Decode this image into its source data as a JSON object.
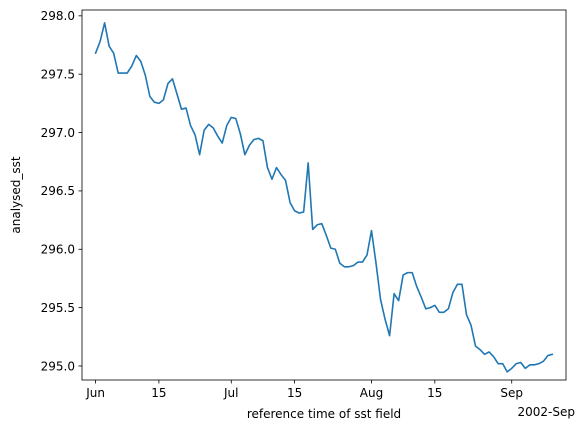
{
  "chart_data": {
    "type": "line",
    "xlabel": "reference time of sst field",
    "ylabel": "analysed_sst",
    "x_offset_label": "2002-Sep",
    "xlim": [
      "2002-05-29",
      "2002-09-13"
    ],
    "ylim": [
      294.88,
      298.05
    ],
    "grid": false,
    "x_ticks": [
      {
        "date": "2002-06-01",
        "label": "Jun"
      },
      {
        "date": "2002-06-15",
        "label": "15"
      },
      {
        "date": "2002-07-01",
        "label": "Jul"
      },
      {
        "date": "2002-07-15",
        "label": "15"
      },
      {
        "date": "2002-08-01",
        "label": "Aug"
      },
      {
        "date": "2002-08-15",
        "label": "15"
      },
      {
        "date": "2002-09-01",
        "label": "Sep"
      }
    ],
    "y_ticks": [
      295.0,
      295.5,
      296.0,
      296.5,
      297.0,
      297.5,
      298.0
    ],
    "y_tick_labels": [
      "295.0",
      "295.5",
      "296.0",
      "296.5",
      "297.0",
      "297.5",
      "298.0"
    ],
    "series": [
      {
        "color": "#1f77b4",
        "x": [
          "2002-06-01",
          "2002-06-02",
          "2002-06-03",
          "2002-06-04",
          "2002-06-05",
          "2002-06-06",
          "2002-06-07",
          "2002-06-08",
          "2002-06-09",
          "2002-06-10",
          "2002-06-11",
          "2002-06-12",
          "2002-06-13",
          "2002-06-14",
          "2002-06-15",
          "2002-06-16",
          "2002-06-17",
          "2002-06-18",
          "2002-06-19",
          "2002-06-20",
          "2002-06-21",
          "2002-06-22",
          "2002-06-23",
          "2002-06-24",
          "2002-06-25",
          "2002-06-26",
          "2002-06-27",
          "2002-06-28",
          "2002-06-29",
          "2002-06-30",
          "2002-07-01",
          "2002-07-02",
          "2002-07-03",
          "2002-07-04",
          "2002-07-05",
          "2002-07-06",
          "2002-07-07",
          "2002-07-08",
          "2002-07-09",
          "2002-07-10",
          "2002-07-11",
          "2002-07-12",
          "2002-07-13",
          "2002-07-14",
          "2002-07-15",
          "2002-07-16",
          "2002-07-17",
          "2002-07-18",
          "2002-07-19",
          "2002-07-20",
          "2002-07-21",
          "2002-07-22",
          "2002-07-23",
          "2002-07-24",
          "2002-07-25",
          "2002-07-26",
          "2002-07-27",
          "2002-07-28",
          "2002-07-29",
          "2002-07-30",
          "2002-07-31",
          "2002-08-01",
          "2002-08-02",
          "2002-08-03",
          "2002-08-04",
          "2002-08-05",
          "2002-08-06",
          "2002-08-07",
          "2002-08-08",
          "2002-08-09",
          "2002-08-10",
          "2002-08-11",
          "2002-08-12",
          "2002-08-13",
          "2002-08-14",
          "2002-08-15",
          "2002-08-16",
          "2002-08-17",
          "2002-08-18",
          "2002-08-19",
          "2002-08-20",
          "2002-08-21",
          "2002-08-22",
          "2002-08-23",
          "2002-08-24",
          "2002-08-25",
          "2002-08-26",
          "2002-08-27",
          "2002-08-28",
          "2002-08-29",
          "2002-08-30",
          "2002-08-31",
          "2002-09-01",
          "2002-09-02",
          "2002-09-03",
          "2002-09-04",
          "2002-09-05",
          "2002-09-06",
          "2002-09-07",
          "2002-09-08",
          "2002-09-09",
          "2002-09-10"
        ],
        "y": [
          297.68,
          297.78,
          297.94,
          297.74,
          297.68,
          297.51,
          297.51,
          297.51,
          297.57,
          297.66,
          297.61,
          297.49,
          297.31,
          297.26,
          297.25,
          297.28,
          297.42,
          297.46,
          297.33,
          297.2,
          297.21,
          297.06,
          296.98,
          296.81,
          297.02,
          297.07,
          297.04,
          296.97,
          296.91,
          297.06,
          297.13,
          297.12,
          296.99,
          296.81,
          296.89,
          296.94,
          296.95,
          296.93,
          296.7,
          296.6,
          296.7,
          296.64,
          296.59,
          296.4,
          296.33,
          296.31,
          296.32,
          296.74,
          296.17,
          296.21,
          296.22,
          296.12,
          296.01,
          296.0,
          295.88,
          295.85,
          295.85,
          295.86,
          295.89,
          295.89,
          295.95,
          296.16,
          295.88,
          295.57,
          295.4,
          295.26,
          295.62,
          295.56,
          295.78,
          295.8,
          295.8,
          295.68,
          295.59,
          295.49,
          295.5,
          295.52,
          295.46,
          295.46,
          295.49,
          295.63,
          295.7,
          295.7,
          295.44,
          295.35,
          295.17,
          295.14,
          295.1,
          295.12,
          295.08,
          295.02,
          295.02,
          294.95,
          294.98,
          295.02,
          295.03,
          294.98,
          295.01,
          295.01,
          295.02,
          295.04,
          295.09,
          295.1
        ]
      }
    ]
  }
}
